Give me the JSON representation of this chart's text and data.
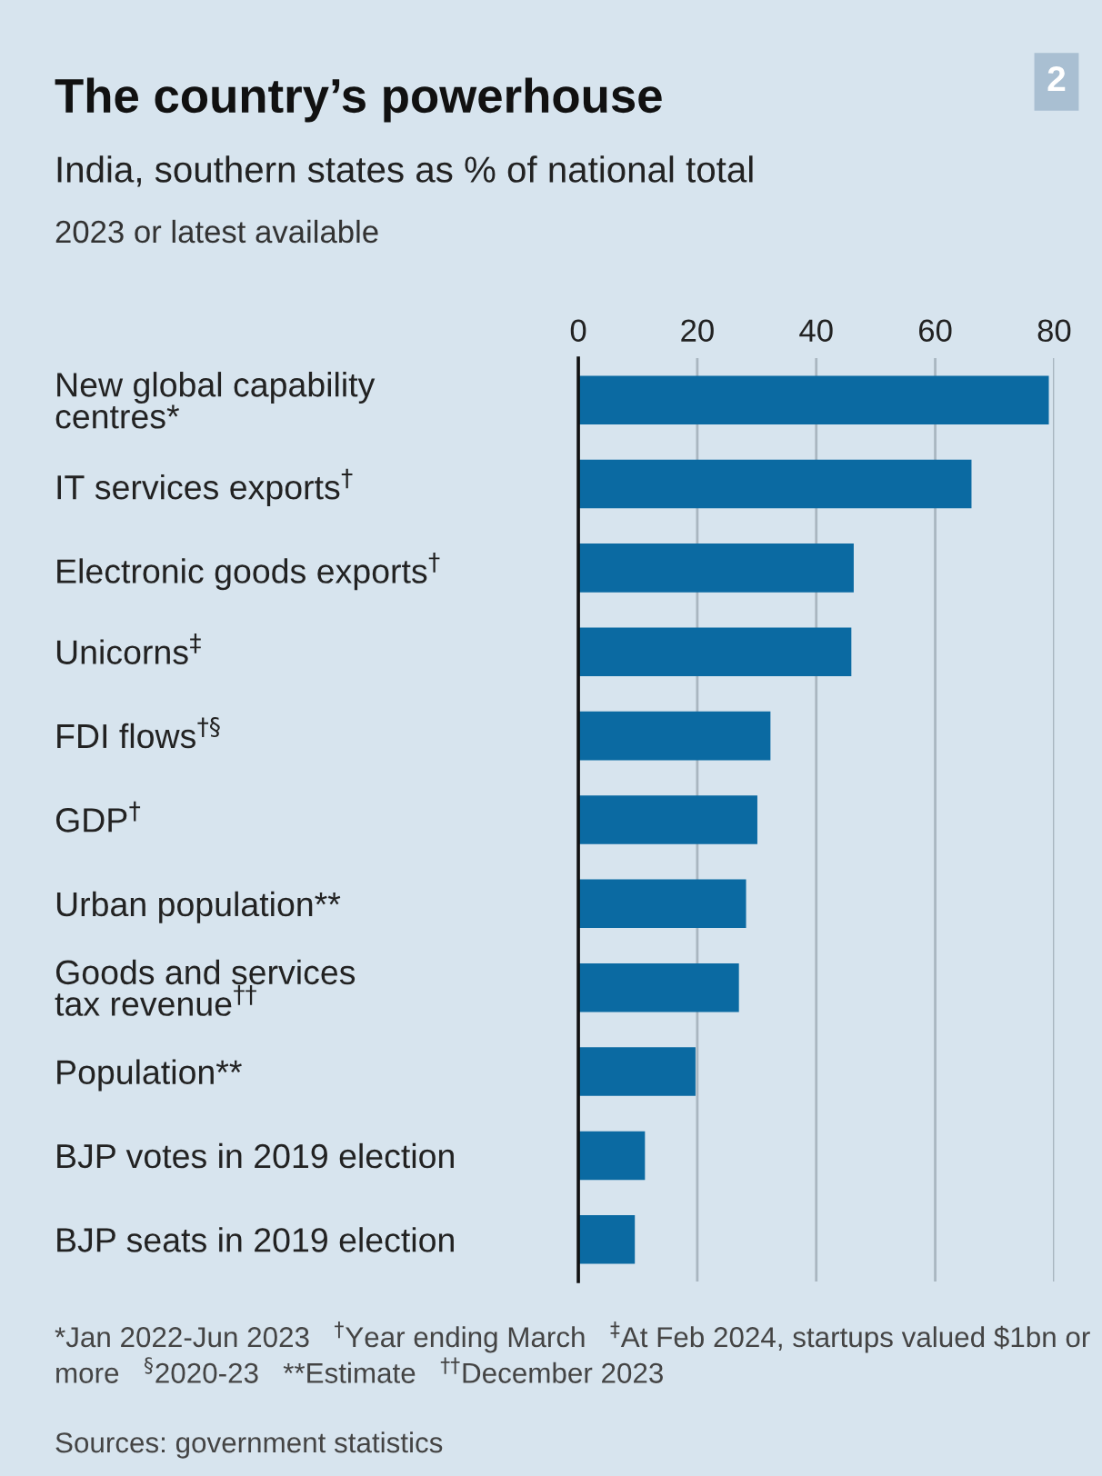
{
  "chart_data": {
    "type": "bar",
    "orientation": "horizontal",
    "title": "The country’s powerhouse",
    "subtitle": "India, southern states as % of national total",
    "xlabel": "2023 or latest available",
    "categories": [
      "New global capability\ncentres*",
      "IT services exports$^{†}$",
      "Electronic goods exports$^{†}$",
      "Unicorns$^{‡}$",
      "FDI flows$^{†§}$",
      "GDP$^{†}$",
      "Urban population**",
      "Goods and services\ntax revenue$^{††}$",
      "Population**",
      "BJP votes in 2019 election",
      "BJP seats in 2019 election"
    ],
    "values": [
      79.1,
      66.1,
      46.3,
      45.9,
      32.3,
      30.1,
      28.2,
      27.0,
      19.7,
      11.2,
      9.5
    ],
    "color": "#0b6aa2",
    "xlim": [
      0,
      80
    ],
    "xticks": [
      0,
      20,
      40,
      60,
      80
    ],
    "grid": "x",
    "annotations": [
      "2",
      "*Jan 2022-Jun 2023",
      "$^{†}$Year ending March",
      "$^{‡}$At Feb 2024, startups valued $1bn or more",
      "$^{§}$2020-23",
      "**Estimate",
      "$^{††}$December 2023",
      "Sources: government statistics"
    ]
  }
}
